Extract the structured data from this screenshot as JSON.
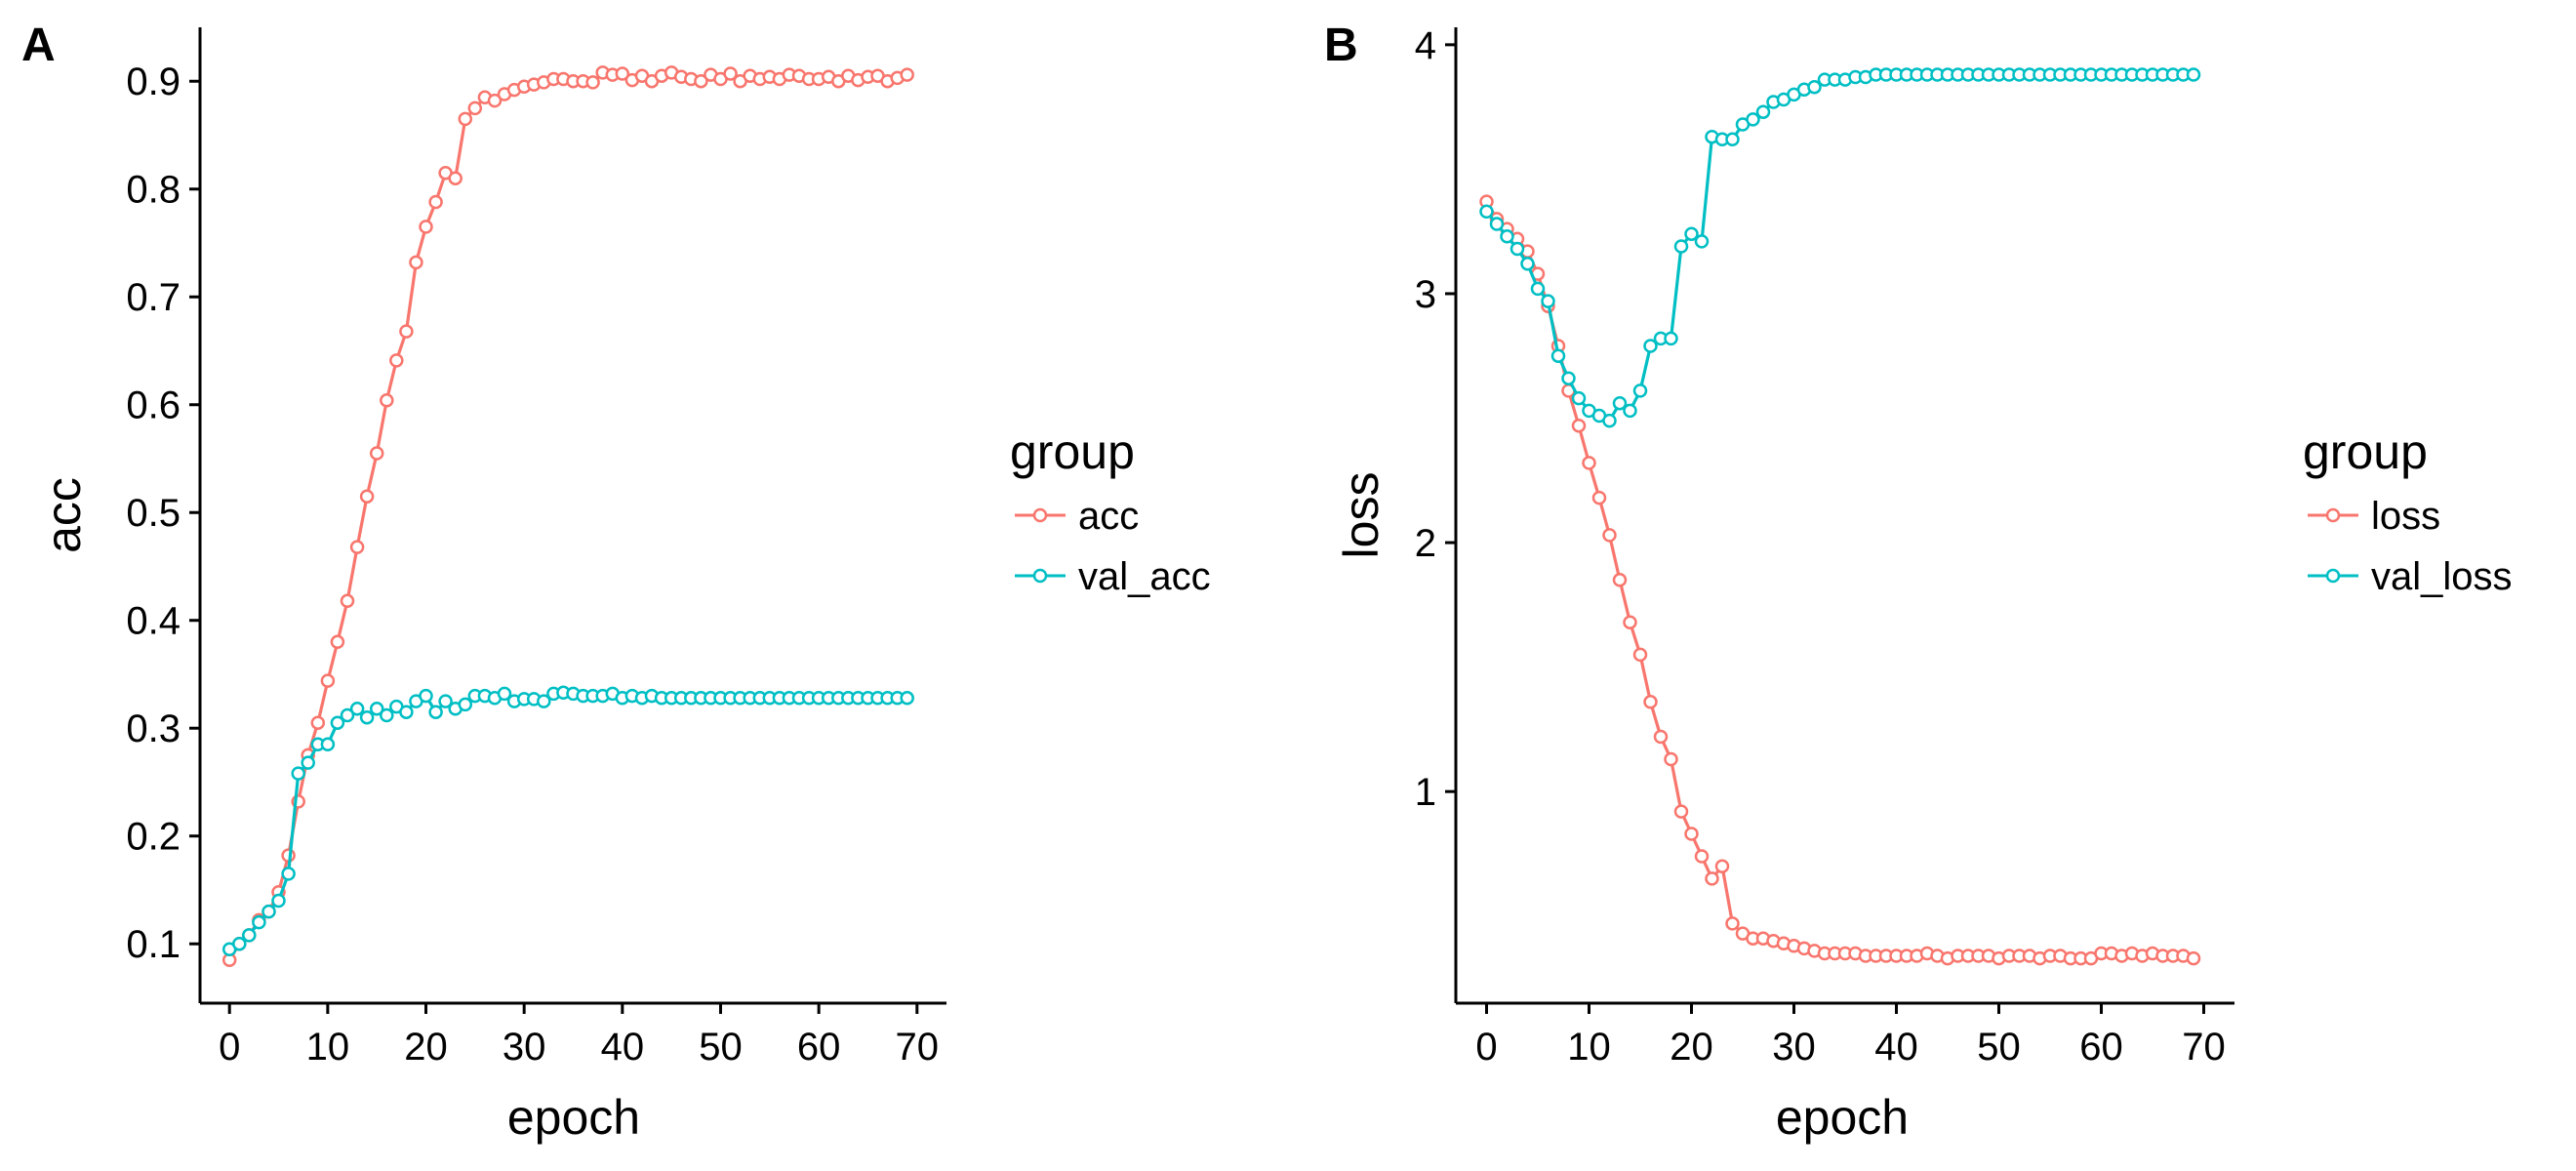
{
  "chart_data": [
    {
      "panel_tag": "A",
      "type": "line",
      "xlabel": "epoch",
      "ylabel": "acc",
      "xlim": [
        -3,
        73
      ],
      "ylim": [
        0.045,
        0.95
      ],
      "xticks": [
        0,
        10,
        20,
        30,
        40,
        50,
        60,
        70
      ],
      "yticks": [
        0.1,
        0.2,
        0.3,
        0.4,
        0.5,
        0.6,
        0.7,
        0.8,
        0.9
      ],
      "ytick_labels": [
        "0.1",
        "0.2",
        "0.3",
        "0.4",
        "0.5",
        "0.6",
        "0.7",
        "0.8",
        "0.9"
      ],
      "grid": false,
      "legend": {
        "title": "group",
        "position": "right"
      },
      "series": [
        {
          "name": "acc",
          "color": "#F8766D",
          "values": [
            0.085,
            0.1,
            0.108,
            0.122,
            0.13,
            0.148,
            0.182,
            0.232,
            0.275,
            0.305,
            0.344,
            0.38,
            0.418,
            0.468,
            0.515,
            0.555,
            0.604,
            0.641,
            0.668,
            0.732,
            0.765,
            0.788,
            0.815,
            0.81,
            0.865,
            0.875,
            0.885,
            0.882,
            0.888,
            0.892,
            0.895,
            0.897,
            0.899,
            0.902,
            0.902,
            0.9,
            0.9,
            0.899,
            0.908,
            0.906,
            0.907,
            0.901,
            0.905,
            0.9,
            0.905,
            0.908,
            0.904,
            0.902,
            0.9,
            0.906,
            0.902,
            0.907,
            0.9,
            0.905,
            0.902,
            0.904,
            0.902,
            0.906,
            0.905,
            0.902,
            0.902,
            0.904,
            0.9,
            0.905,
            0.901,
            0.904,
            0.905,
            0.9,
            0.903,
            0.906
          ]
        },
        {
          "name": "val_acc",
          "color": "#00BFC4",
          "values": [
            0.095,
            0.1,
            0.108,
            0.12,
            0.13,
            0.14,
            0.165,
            0.258,
            0.268,
            0.285,
            0.285,
            0.305,
            0.312,
            0.318,
            0.31,
            0.318,
            0.312,
            0.32,
            0.315,
            0.325,
            0.33,
            0.315,
            0.325,
            0.318,
            0.322,
            0.33,
            0.33,
            0.328,
            0.332,
            0.325,
            0.327,
            0.327,
            0.325,
            0.332,
            0.333,
            0.332,
            0.33,
            0.33,
            0.33,
            0.332,
            0.328,
            0.33,
            0.328,
            0.33,
            0.328,
            0.328,
            0.328,
            0.328,
            0.328,
            0.328,
            0.328,
            0.328,
            0.328,
            0.328,
            0.328,
            0.328,
            0.328,
            0.328,
            0.328,
            0.328,
            0.328,
            0.328,
            0.328,
            0.328,
            0.328,
            0.328,
            0.328,
            0.328,
            0.328,
            0.328
          ]
        }
      ]
    },
    {
      "panel_tag": "B",
      "type": "line",
      "xlabel": "epoch",
      "ylabel": "loss",
      "xlim": [
        -3,
        73
      ],
      "ylim": [
        0.15,
        4.07
      ],
      "xticks": [
        0,
        10,
        20,
        30,
        40,
        50,
        60,
        70
      ],
      "yticks": [
        1,
        2,
        3,
        4
      ],
      "ytick_labels": [
        "1",
        "2",
        "3",
        "4"
      ],
      "grid": false,
      "legend": {
        "title": "group",
        "position": "right"
      },
      "series": [
        {
          "name": "loss",
          "color": "#F8766D",
          "values": [
            3.37,
            3.3,
            3.26,
            3.22,
            3.17,
            3.08,
            2.95,
            2.79,
            2.61,
            2.47,
            2.32,
            2.18,
            2.03,
            1.85,
            1.68,
            1.55,
            1.36,
            1.22,
            1.13,
            0.92,
            0.83,
            0.74,
            0.65,
            0.7,
            0.47,
            0.43,
            0.41,
            0.41,
            0.4,
            0.39,
            0.38,
            0.37,
            0.36,
            0.35,
            0.35,
            0.35,
            0.35,
            0.34,
            0.34,
            0.34,
            0.34,
            0.34,
            0.34,
            0.35,
            0.34,
            0.33,
            0.34,
            0.34,
            0.34,
            0.34,
            0.33,
            0.34,
            0.34,
            0.34,
            0.33,
            0.34,
            0.34,
            0.33,
            0.33,
            0.33,
            0.35,
            0.35,
            0.34,
            0.35,
            0.34,
            0.35,
            0.34,
            0.34,
            0.34,
            0.33
          ]
        },
        {
          "name": "val_loss",
          "color": "#00BFC4",
          "values": [
            3.33,
            3.28,
            3.23,
            3.18,
            3.12,
            3.02,
            2.97,
            2.75,
            2.66,
            2.58,
            2.53,
            2.51,
            2.49,
            2.56,
            2.53,
            2.61,
            2.79,
            2.82,
            2.82,
            3.19,
            3.24,
            3.21,
            3.63,
            3.62,
            3.62,
            3.68,
            3.7,
            3.73,
            3.77,
            3.78,
            3.8,
            3.82,
            3.83,
            3.86,
            3.86,
            3.86,
            3.87,
            3.87,
            3.88,
            3.88,
            3.88,
            3.88,
            3.88,
            3.88,
            3.88,
            3.88,
            3.88,
            3.88,
            3.88,
            3.88,
            3.88,
            3.88,
            3.88,
            3.88,
            3.88,
            3.88,
            3.88,
            3.88,
            3.88,
            3.88,
            3.88,
            3.88,
            3.88,
            3.88,
            3.88,
            3.88,
            3.88,
            3.88,
            3.88,
            3.88
          ]
        }
      ]
    }
  ]
}
